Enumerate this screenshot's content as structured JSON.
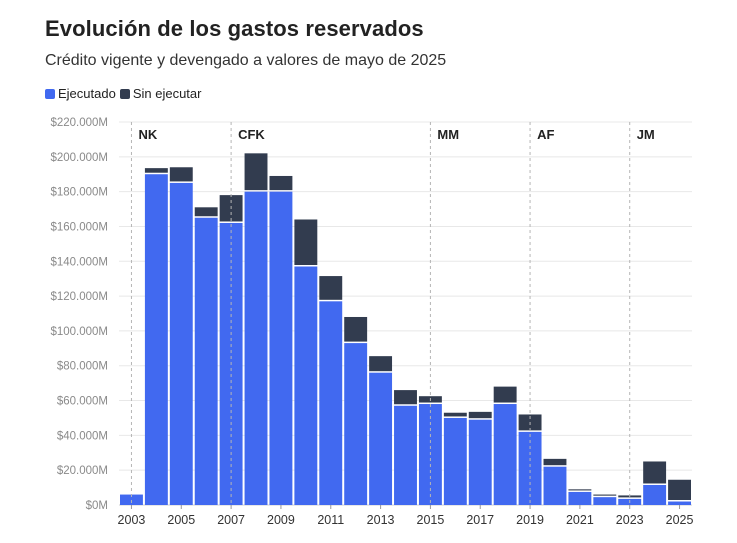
{
  "colors": {
    "ejecutado": "#4169f0",
    "sin_ejecutar": "#323c4f",
    "grid": "#e8e8e8",
    "vline": "#b5b5b5"
  },
  "chart_data": {
    "type": "bar",
    "stacked": true,
    "title": "Evolución de los gastos reservados",
    "subtitle": "Crédito vigente y devengado a valores de mayo de 2025",
    "legend_position": "top-left",
    "grid": true,
    "ylim": [
      0,
      220000
    ],
    "y_ticks": [
      {
        "value": 0,
        "label": "$0M"
      },
      {
        "value": 20000,
        "label": "$20.000M"
      },
      {
        "value": 40000,
        "label": "$40.000M"
      },
      {
        "value": 60000,
        "label": "$60.000M"
      },
      {
        "value": 80000,
        "label": "$80.000M"
      },
      {
        "value": 100000,
        "label": "$100.000M"
      },
      {
        "value": 120000,
        "label": "$120.000M"
      },
      {
        "value": 140000,
        "label": "$140.000M"
      },
      {
        "value": 160000,
        "label": "$160.000M"
      },
      {
        "value": 180000,
        "label": "$180.000M"
      },
      {
        "value": 200000,
        "label": "$200.000M"
      },
      {
        "value": 220000,
        "label": "$220.000M"
      }
    ],
    "x_tick_labels": [
      "2003",
      "2005",
      "2007",
      "2009",
      "2011",
      "2013",
      "2015",
      "2017",
      "2019",
      "2021",
      "2023",
      "2025"
    ],
    "categories": [
      "2003",
      "2004",
      "2005",
      "2006",
      "2007",
      "2008",
      "2009",
      "2010",
      "2011",
      "2012",
      "2013",
      "2014",
      "2015",
      "2016",
      "2017",
      "2018",
      "2019",
      "2020",
      "2021",
      "2022",
      "2023",
      "2024",
      "2025"
    ],
    "series": [
      {
        "name": "Ejecutado",
        "values": [
          6000,
          190000,
          185000,
          165000,
          162000,
          180000,
          180000,
          137000,
          117000,
          93000,
          76000,
          57000,
          58000,
          50000,
          49000,
          58000,
          42000,
          22000,
          7500,
          4500,
          3500,
          11500,
          2000
        ]
      },
      {
        "name": "Sin ejecutar",
        "values": [
          0,
          3500,
          9000,
          6000,
          16000,
          22000,
          9000,
          27000,
          14500,
          15000,
          9500,
          9000,
          4500,
          3000,
          4500,
          10000,
          10000,
          4500,
          1500,
          1500,
          2000,
          13500,
          12500
        ]
      }
    ],
    "annotations": [
      {
        "label": "NK",
        "x": "2003"
      },
      {
        "label": "CFK",
        "x": "2007"
      },
      {
        "label": "MM",
        "x": "2015"
      },
      {
        "label": "AF",
        "x": "2019"
      },
      {
        "label": "JM",
        "x": "2023"
      }
    ]
  }
}
